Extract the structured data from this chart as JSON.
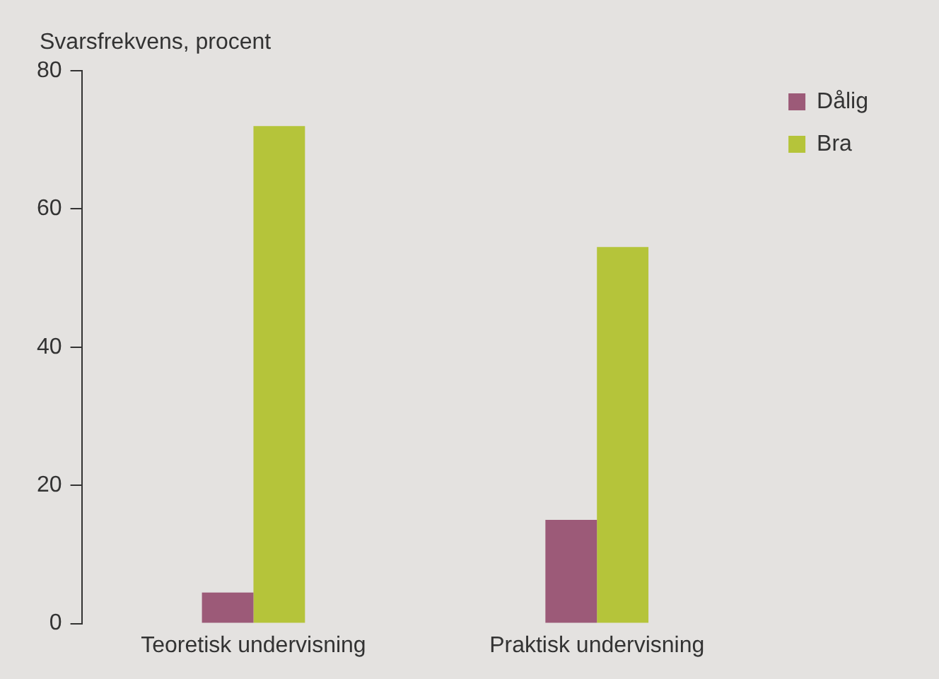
{
  "chart_data": {
    "type": "bar",
    "ylabel": "Svarsfrekvens, procent",
    "categories": [
      "Teoretisk undervisning",
      "Praktisk undervisning"
    ],
    "series": [
      {
        "name": "Dålig",
        "color": "#9c5a78",
        "values": [
          4.5,
          15
        ]
      },
      {
        "name": "Bra",
        "color": "#b5c43a",
        "values": [
          72,
          54.5
        ]
      }
    ],
    "ylim": [
      0,
      80
    ],
    "yticks": [
      0,
      20,
      40,
      60,
      80
    ],
    "grid": false,
    "legend": "top right"
  }
}
